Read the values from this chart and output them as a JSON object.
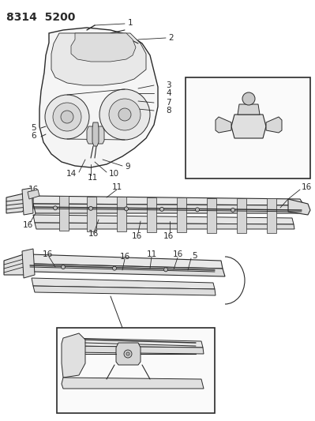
{
  "title": "8314  5200",
  "bg_color": "#ffffff",
  "line_color": "#2a2a2a",
  "title_fontsize": 10,
  "label_fontsize": 7.5,
  "fig_width": 3.99,
  "fig_height": 5.33,
  "dpi": 100
}
